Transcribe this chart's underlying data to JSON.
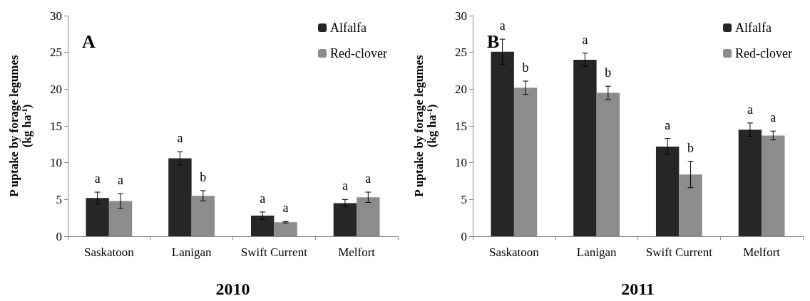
{
  "chart_data": [
    {
      "type": "bar",
      "title": "A",
      "xlabel": "2010",
      "ylabel": "P uptake by forage legumes\n(kg ha$^{-1}$)",
      "categories": [
        "Saskatoon",
        "Lanigan",
        "Swift Current",
        "Melfort"
      ],
      "series": [
        {
          "name": "Alfalfa",
          "color": "#262626",
          "values": [
            5.2,
            10.6,
            2.8,
            4.5
          ],
          "errors": [
            0.8,
            0.9,
            0.5,
            0.5
          ],
          "value_labels": [
            "a",
            "a",
            "a",
            "a"
          ]
        },
        {
          "name": "Red-clover",
          "color": "#8c8c8c",
          "values": [
            4.8,
            5.5,
            1.9,
            5.3
          ],
          "errors": [
            1.0,
            0.7,
            0.1,
            0.7
          ],
          "value_labels": [
            "a",
            "b",
            "a",
            "a"
          ]
        }
      ],
      "ylim": [
        0,
        30
      ],
      "yticks": [
        0,
        5,
        10,
        15,
        20,
        25,
        30
      ],
      "legend": "top right"
    },
    {
      "type": "bar",
      "title": "B",
      "xlabel": "2011",
      "ylabel": "P uptake by forage legumes\n(kg ha$^{-1}$)",
      "categories": [
        "Saskatoon",
        "Lanigan",
        "Swift Current",
        "Melfort"
      ],
      "series": [
        {
          "name": "Alfalfa",
          "color": "#262626",
          "values": [
            25.1,
            24.0,
            12.2,
            14.5
          ],
          "errors": [
            1.7,
            0.9,
            1.1,
            0.9
          ],
          "value_labels": [
            "a",
            "a",
            "a",
            "a"
          ]
        },
        {
          "name": "Red-clover",
          "color": "#8c8c8c",
          "values": [
            20.2,
            19.5,
            8.4,
            13.7
          ],
          "errors": [
            0.9,
            0.9,
            1.8,
            0.6
          ],
          "value_labels": [
            "b",
            "b",
            "b",
            "a"
          ]
        }
      ],
      "ylim": [
        0,
        30
      ],
      "yticks": [
        0,
        5,
        10,
        15,
        20,
        25,
        30
      ],
      "legend": "top right"
    }
  ]
}
